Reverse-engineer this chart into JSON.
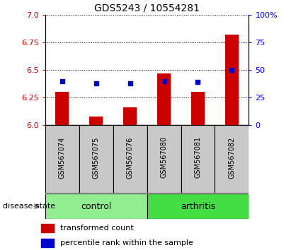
{
  "title": "GDS5243 / 10554281",
  "samples": [
    "GSM567074",
    "GSM567075",
    "GSM567076",
    "GSM567080",
    "GSM567081",
    "GSM567082"
  ],
  "groups": [
    "control",
    "control",
    "control",
    "arthritis",
    "arthritis",
    "arthritis"
  ],
  "bar_values": [
    6.3,
    6.08,
    6.16,
    6.47,
    6.3,
    6.82
  ],
  "dot_values_pct": [
    40,
    38,
    38,
    40,
    39,
    50
  ],
  "ylim_left": [
    6.0,
    7.0
  ],
  "ylim_right": [
    0,
    100
  ],
  "yticks_left": [
    6.0,
    6.25,
    6.5,
    6.75,
    7.0
  ],
  "yticks_right": [
    0,
    25,
    50,
    75,
    100
  ],
  "bar_color": "#CC0000",
  "dot_color": "#0000CC",
  "label_bg": "#C8C8C8",
  "control_color": "#90EE90",
  "arthritis_color": "#44DD44",
  "legend_bar_label": "transformed count",
  "legend_dot_label": "percentile rank within the sample",
  "disease_state_label": "disease state"
}
